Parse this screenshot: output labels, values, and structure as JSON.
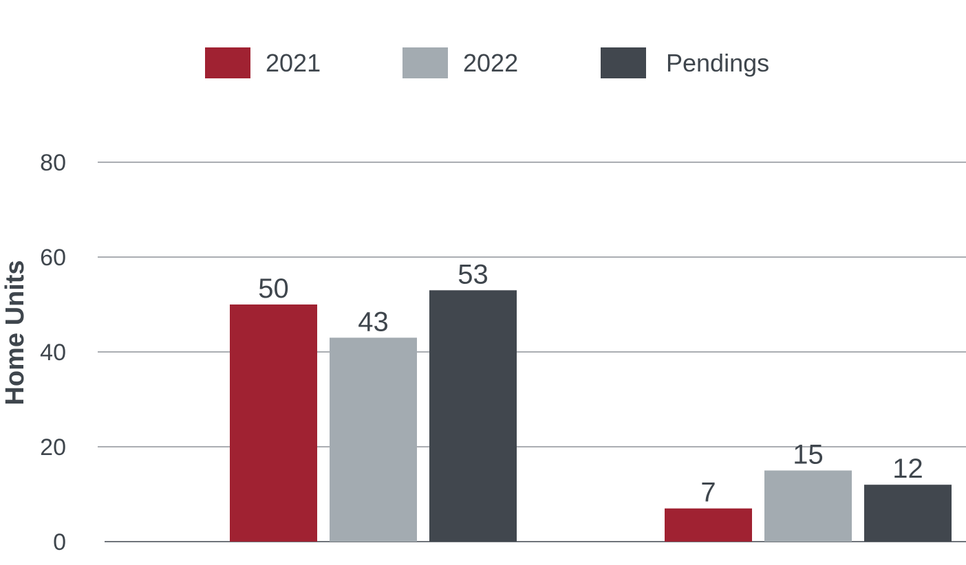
{
  "chart_data": {
    "type": "bar",
    "categories": [
      "",
      ""
    ],
    "series": [
      {
        "name": "2021",
        "values": [
          50,
          7
        ],
        "color": "#a02232"
      },
      {
        "name": "2022",
        "values": [
          43,
          15
        ],
        "color": "#a3abb1"
      },
      {
        "name": "Pendings",
        "values": [
          53,
          12
        ],
        "color": "#41474e"
      }
    ],
    "ylabel": "Home Units",
    "xlabel": "",
    "ylim": [
      0,
      80
    ],
    "yticks": [
      0,
      20,
      40,
      60,
      80
    ],
    "grid": true,
    "legend": "top-center"
  }
}
